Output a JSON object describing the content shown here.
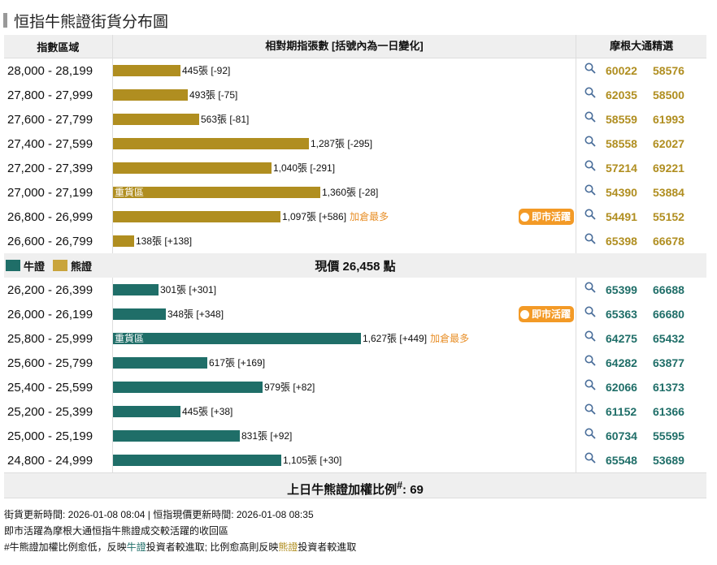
{
  "title": "恒指牛熊證街貨分布圖",
  "header": {
    "col_range": "指數區域",
    "col_qty": "相對期指張數 [括號內為一日變化]",
    "col_pick": "摩根大通精選"
  },
  "colors": {
    "bear": "#b08e20",
    "bull": "#1f6e68",
    "hot": "#f39a26"
  },
  "bear_rows": [
    {
      "range": "28,000 - 28,199",
      "qty": 445,
      "label": "445張 [-92]",
      "codes": [
        "60022",
        "58576"
      ]
    },
    {
      "range": "27,800 - 27,999",
      "qty": 493,
      "label": "493張 [-75]",
      "codes": [
        "62035",
        "58500"
      ]
    },
    {
      "range": "27,600 - 27,799",
      "qty": 563,
      "label": "563張 [-81]",
      "codes": [
        "58559",
        "61993"
      ]
    },
    {
      "range": "27,400 - 27,599",
      "qty": 1287,
      "label": "1,287張 [-295]",
      "codes": [
        "58558",
        "62027"
      ]
    },
    {
      "range": "27,200 - 27,399",
      "qty": 1040,
      "label": "1,040張 [-291]",
      "codes": [
        "57214",
        "69221"
      ]
    },
    {
      "range": "27,000 - 27,199",
      "qty": 1360,
      "label": "1,360張 [-28]",
      "heavy": "重貨區",
      "codes": [
        "54390",
        "53884"
      ]
    },
    {
      "range": "26,800 - 26,999",
      "qty": 1097,
      "label": "1,097張 [+586]",
      "most": "加倉最多",
      "hot": "即市活躍",
      "codes": [
        "54491",
        "55152"
      ]
    },
    {
      "range": "26,600 - 26,799",
      "qty": 138,
      "label": "138張 [+138]",
      "codes": [
        "65398",
        "66678"
      ]
    }
  ],
  "legend": {
    "bull": "牛證",
    "bear": "熊證"
  },
  "current_price": "現價 26,458 點",
  "bull_rows": [
    {
      "range": "26,200 - 26,399",
      "qty": 301,
      "label": "301張 [+301]",
      "codes": [
        "65399",
        "66688"
      ]
    },
    {
      "range": "26,000 - 26,199",
      "qty": 348,
      "label": "348張 [+348]",
      "hot": "即市活躍",
      "codes": [
        "65363",
        "66680"
      ]
    },
    {
      "range": "25,800 - 25,999",
      "qty": 1627,
      "label": "1,627張 [+449]",
      "heavy": "重貨區",
      "most": "加倉最多",
      "codes": [
        "64275",
        "65432"
      ]
    },
    {
      "range": "25,600 - 25,799",
      "qty": 617,
      "label": "617張 [+169]",
      "codes": [
        "64282",
        "63877"
      ]
    },
    {
      "range": "25,400 - 25,599",
      "qty": 979,
      "label": "979張 [+82]",
      "codes": [
        "62066",
        "61373"
      ]
    },
    {
      "range": "25,200 - 25,399",
      "qty": 445,
      "label": "445張 [+38]",
      "codes": [
        "61152",
        "61366"
      ]
    },
    {
      "range": "25,000 - 25,199",
      "qty": 831,
      "label": "831張 [+92]",
      "codes": [
        "60734",
        "55595"
      ]
    },
    {
      "range": "24,800 - 24,999",
      "qty": 1105,
      "label": "1,105張 [+30]",
      "codes": [
        "65548",
        "53689"
      ]
    }
  ],
  "ratio": {
    "label": "上日牛熊證加權比例",
    "sup": "#",
    "value": ": 69"
  },
  "footer": {
    "line1": "街貨更新時間: 2026-01-08 08:04 | 恒指現價更新時間: 2026-01-08 08:35",
    "line2": "即市活躍為摩根大通恒指牛熊證成交較活躍的收回區",
    "line3_a": "#牛熊證加權比例愈低，反映",
    "line3_bull": "牛證",
    "line3_b": "投資者較進取; 比例愈高則反映",
    "line3_bear": "熊證",
    "line3_c": "投資者較進取"
  }
}
